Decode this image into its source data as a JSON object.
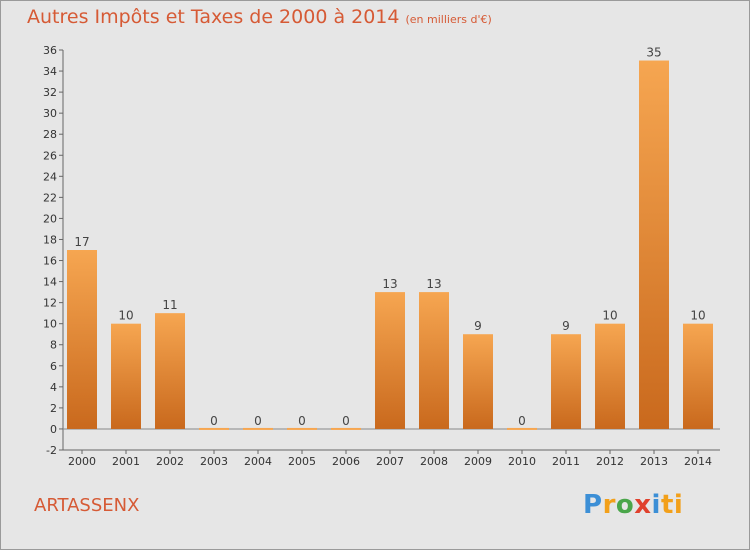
{
  "header": {
    "title": "Autres Impôts et Taxes de 2000 à 2014",
    "subtitle": "(en milliers d'€)"
  },
  "commune": "ARTASSENX",
  "logo": {
    "letters": [
      "P",
      "r",
      "o",
      "x",
      "i",
      "ti"
    ]
  },
  "colors": {
    "background": "#e6e6e6",
    "title": "#d65a35",
    "bar_light": "#f6a651",
    "bar_dark": "#c9691d"
  },
  "chart_data": {
    "type": "bar",
    "categories": [
      "2000",
      "2001",
      "2002",
      "2003",
      "2004",
      "2005",
      "2006",
      "2007",
      "2008",
      "2009",
      "2010",
      "2011",
      "2012",
      "2013",
      "2014"
    ],
    "values": [
      17,
      10,
      11,
      0,
      0,
      0,
      0,
      13,
      13,
      9,
      0,
      9,
      10,
      35,
      10
    ],
    "data_labels": [
      "17",
      "10",
      "11",
      "0",
      "0",
      "0",
      "0",
      "13",
      "13",
      "9",
      "0",
      "9",
      "10",
      "35",
      "10"
    ],
    "title": "Autres Impôts et Taxes de 2000 à 2014",
    "subtitle": "(en milliers d'€)",
    "xlabel": "",
    "ylabel": "",
    "ylim": [
      -2,
      36
    ],
    "yticks": [
      -2,
      0,
      2,
      4,
      6,
      8,
      10,
      12,
      14,
      16,
      18,
      20,
      22,
      24,
      26,
      28,
      30,
      32,
      34,
      36
    ],
    "grid": false,
    "legend": "none"
  }
}
